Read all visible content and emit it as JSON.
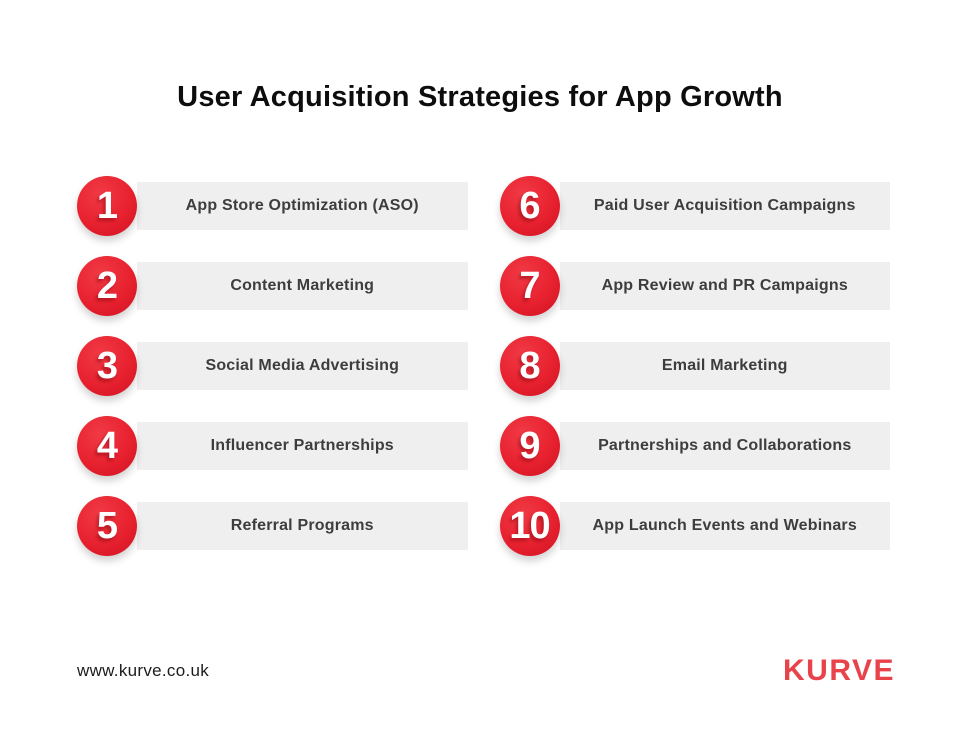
{
  "title": "User Acquisition Strategies for App Growth",
  "columns": {
    "left": [
      {
        "number": "1",
        "label": "App Store Optimization (ASO)"
      },
      {
        "number": "2",
        "label": "Content Marketing"
      },
      {
        "number": "3",
        "label": "Social Media Advertising"
      },
      {
        "number": "4",
        "label": "Influencer Partnerships"
      },
      {
        "number": "5",
        "label": "Referral Programs"
      }
    ],
    "right": [
      {
        "number": "6",
        "label": "Paid User Acquisition Campaigns"
      },
      {
        "number": "7",
        "label": "App Review and PR Campaigns"
      },
      {
        "number": "8",
        "label": "Email Marketing"
      },
      {
        "number": "9",
        "label": "Partnerships and Collaborations"
      },
      {
        "number": "10",
        "label": "App Launch Events and Webinars"
      }
    ]
  },
  "footer": {
    "url": "www.kurve.co.uk",
    "brand": "KURVE"
  },
  "colors": {
    "badge_red": "#e8212f",
    "badge_red_dark": "#b51220",
    "bar_gray": "#efefef",
    "label_gray": "#3d3d3d",
    "title_black": "#0d0d0d",
    "logo_red": "#e8434b"
  }
}
